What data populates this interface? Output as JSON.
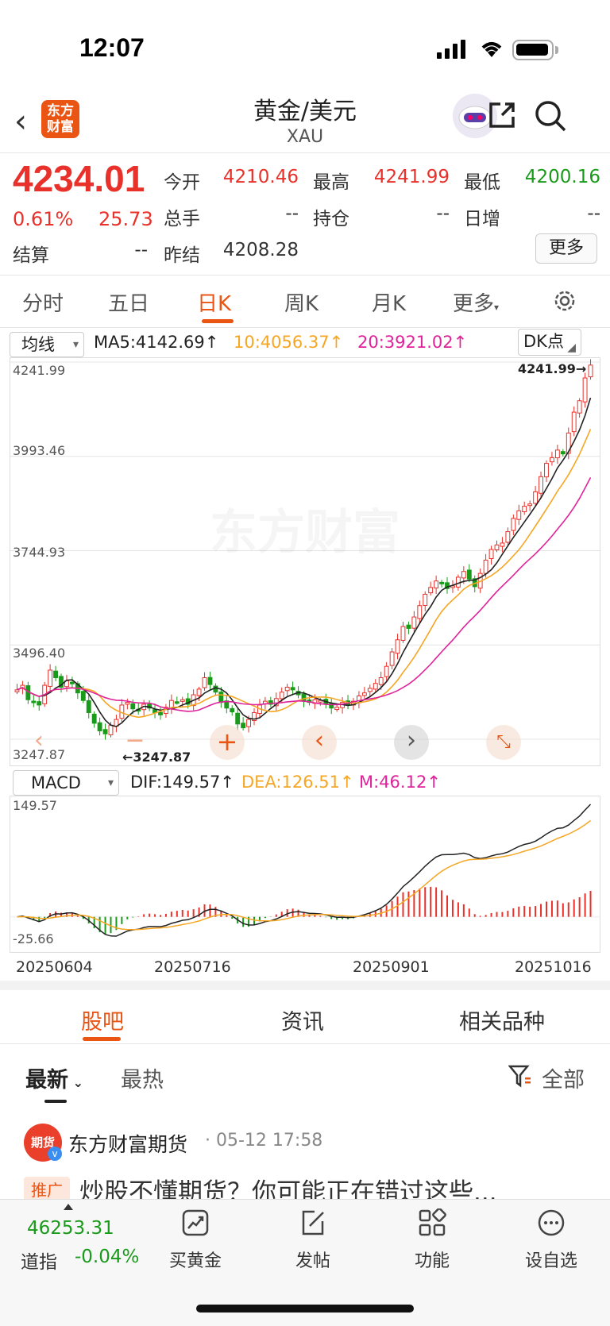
{
  "status": {
    "time": "12:07"
  },
  "header": {
    "logo_text": "东方财富",
    "title": "黄金/美元",
    "symbol": "XAU"
  },
  "quote": {
    "price": "4234.01",
    "change_pct": "0.61%",
    "change": "25.73",
    "open_label": "今开",
    "open": "4210.46",
    "high_label": "最高",
    "high": "4241.99",
    "low_label": "最低",
    "low": "4200.16",
    "volume_label": "总手",
    "volume": "--",
    "position_label": "持仓",
    "position": "--",
    "daily_inc_label": "日增",
    "daily_inc": "--",
    "settle_label": "结算",
    "settle": "--",
    "prev_settle_label": "昨结",
    "prev_settle": "4208.28",
    "more_label": "更多"
  },
  "period_tabs": [
    "分时",
    "五日",
    "日K",
    "周K",
    "月K",
    "更多"
  ],
  "active_period": "日K",
  "chart_controls": {
    "ma_select": "均线",
    "ma5": "MA5:4142.69",
    "ma10": "10:4056.37",
    "ma20": "20:3921.02",
    "dk_label": "DK点",
    "macd_select": "MACD",
    "dif": "DIF:149.57",
    "dea": "DEA:126.51",
    "m": "M:46.12",
    "watermark": "东方财富",
    "colors": {
      "ma5": "#222222",
      "ma10": "#f5a623",
      "ma20": "#e0229a",
      "up": "#e8312a",
      "down": "#1a9a1a"
    }
  },
  "chart_data": [
    {
      "type": "candlestick",
      "title": "",
      "y_ticks": [
        "4241.99",
        "3993.46",
        "3744.93",
        "3496.40",
        "3247.87"
      ],
      "ylim": [
        3247.87,
        4241.99
      ],
      "max_marker": "4241.99",
      "min_marker": "3247.87",
      "x_tick_labels": [
        "20250604",
        "20250716",
        "20250901",
        "20251016"
      ],
      "closes": [
        3378,
        3390,
        3352,
        3345,
        3338,
        3390,
        3430,
        3410,
        3385,
        3402,
        3395,
        3370,
        3350,
        3318,
        3290,
        3270,
        3262,
        3285,
        3300,
        3338,
        3345,
        3328,
        3322,
        3340,
        3330,
        3318,
        3312,
        3332,
        3350,
        3345,
        3352,
        3340,
        3365,
        3380,
        3410,
        3392,
        3372,
        3345,
        3330,
        3320,
        3288,
        3278,
        3300,
        3318,
        3338,
        3348,
        3340,
        3355,
        3372,
        3385,
        3378,
        3365,
        3348,
        3345,
        3352,
        3350,
        3340,
        3330,
        3332,
        3345,
        3338,
        3348,
        3362,
        3370,
        3382,
        3395,
        3410,
        3440,
        3478,
        3510,
        3545,
        3540,
        3570,
        3600,
        3630,
        3648,
        3665,
        3658,
        3645,
        3652,
        3675,
        3690,
        3670,
        3650,
        3685,
        3720,
        3748,
        3760,
        3765,
        3795,
        3830,
        3850,
        3862,
        3868,
        3900,
        3940,
        3975,
        3990,
        4010,
        4000,
        4055,
        4110,
        4140,
        4200,
        4234
      ],
      "series": [
        {
          "name": "MA5",
          "last": 4142.69
        },
        {
          "name": "10",
          "last": 4056.37
        },
        {
          "name": "20",
          "last": 3921.02
        }
      ]
    },
    {
      "type": "bar",
      "title": "",
      "y_ticks": [
        "149.57",
        "-25.66"
      ],
      "ylim": [
        -25.66,
        149.57
      ],
      "series": [
        {
          "name": "DIF",
          "last": 149.57
        },
        {
          "name": "DEA",
          "last": 126.51
        },
        {
          "name": "M",
          "last": 46.12
        }
      ]
    }
  ],
  "content_tabs": [
    "股吧",
    "资讯",
    "相关品种"
  ],
  "active_content_tab": "股吧",
  "sort_tabs": {
    "latest": "最新",
    "hot": "最热",
    "filter": "全部"
  },
  "post": {
    "avatar_text": "期货",
    "author": "东方财富期货",
    "time": "· 05-12 17:58",
    "badge": "推广",
    "text": "炒股不懂期货？你可能正在错过这些..."
  },
  "bottom_nav": {
    "index_value": "46253.31",
    "index_label": "道指",
    "index_change": "-0.04%",
    "items": [
      "买黄金",
      "发帖",
      "功能",
      "设自选"
    ]
  }
}
